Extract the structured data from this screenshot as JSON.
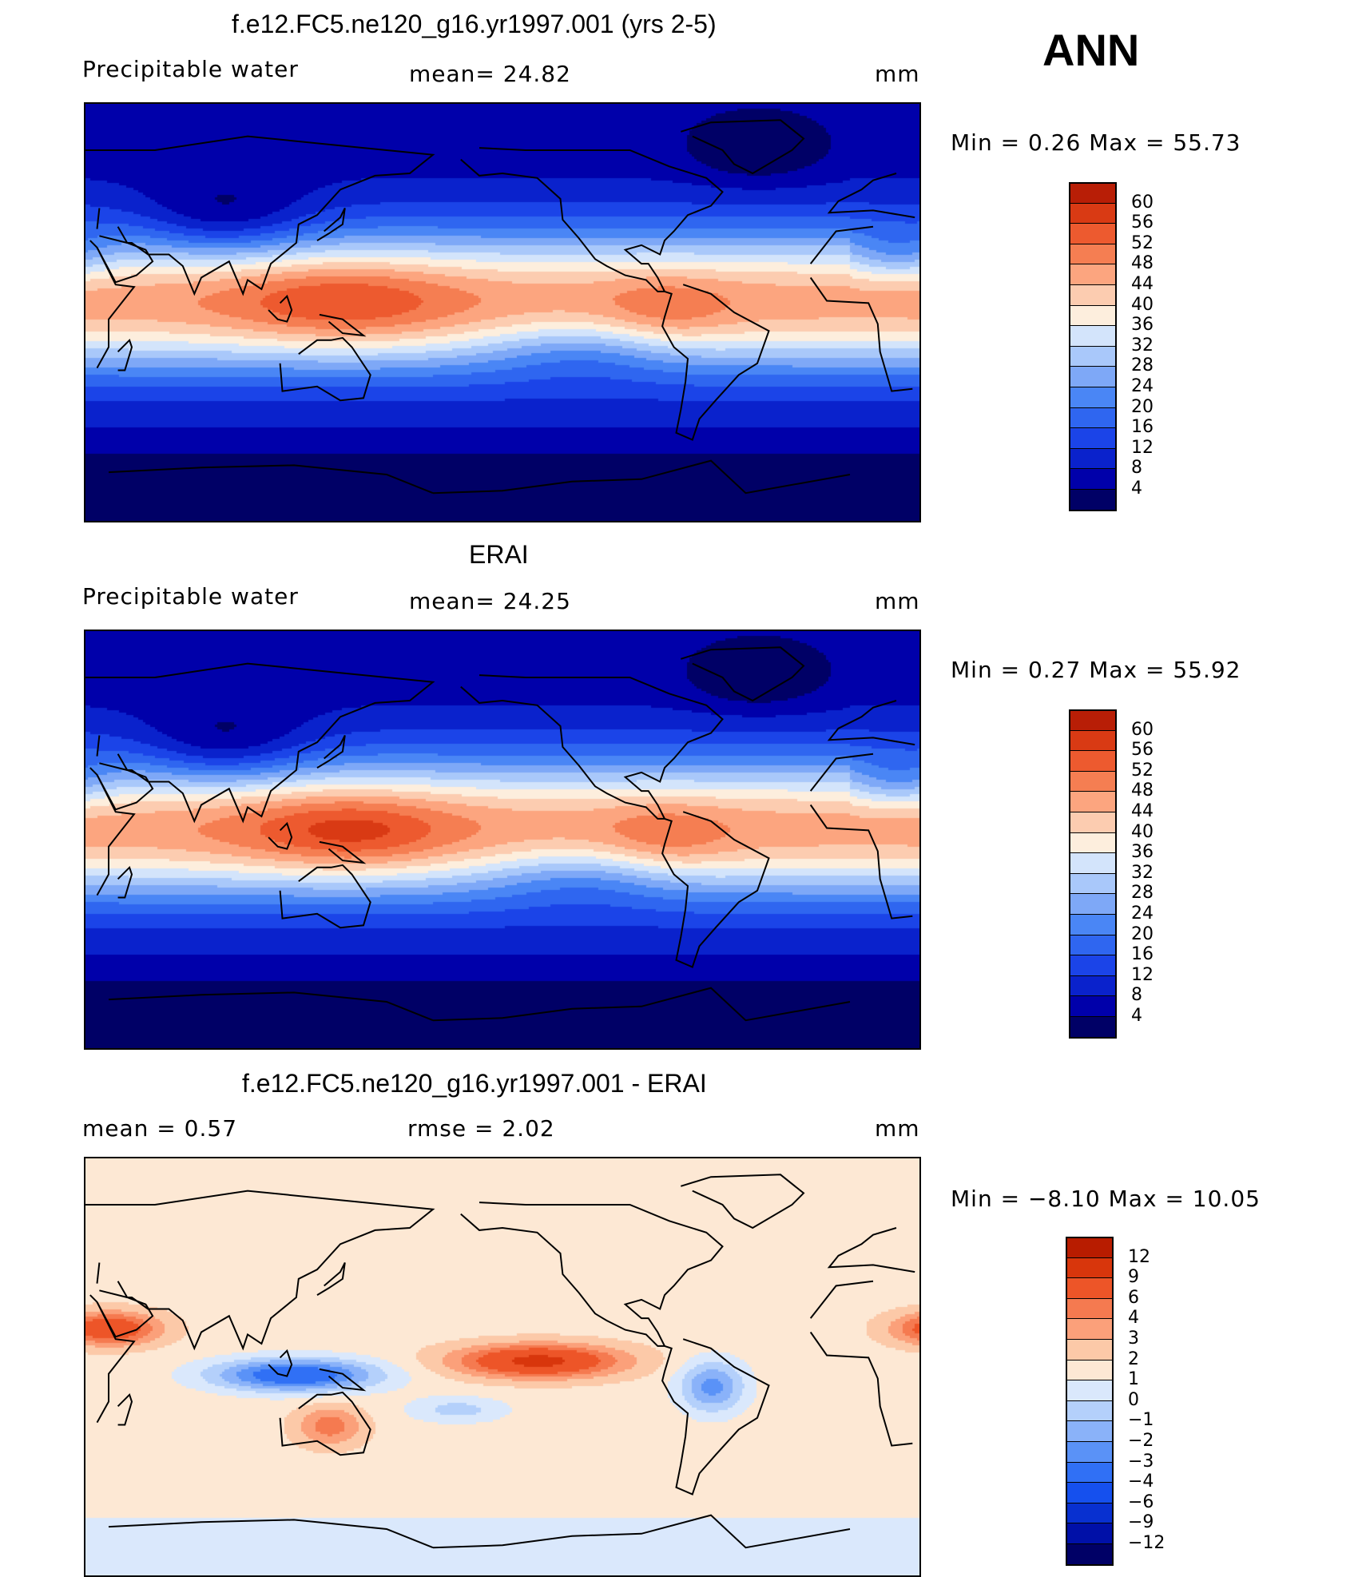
{
  "season": "ANN",
  "colors": {
    "abs_scale": [
      "#000066",
      "#0000aa",
      "#0a22cc",
      "#1b44e8",
      "#2f66f0",
      "#4a86f5",
      "#7ea8f7",
      "#a9c8fa",
      "#d3e4fb",
      "#fdeedd",
      "#fcccb0",
      "#fca57f",
      "#f57e52",
      "#ed5a2f",
      "#d93a14",
      "#b81e06",
      "#8c0000"
    ],
    "diff_scale": [
      "#000066",
      "#0010a8",
      "#0830d0",
      "#1550ee",
      "#3070f5",
      "#5a92f7",
      "#8ab2f9",
      "#b4d0fb",
      "#dae8fc",
      "#fde8d4",
      "#fcc9a8",
      "#fba07a",
      "#f57a50",
      "#ed5528",
      "#d8360c",
      "#b81c00",
      "#8c0000"
    ]
  },
  "panels": [
    {
      "title": "f.e12.FC5.ne120_g16.yr1997.001 (yrs 2-5)",
      "left_label": "Precipitable  water",
      "mid_label": "mean=   24.82",
      "right_label": "mm",
      "stats": "Min  =     0.26  Max  =     55.73",
      "levels": [
        "60",
        "56",
        "52",
        "48",
        "44",
        "40",
        "36",
        "32",
        "28",
        "24",
        "20",
        "16",
        "12",
        "8",
        "4"
      ],
      "kind": "model"
    },
    {
      "title": "ERAI",
      "left_label": "Precipitable  water",
      "mid_label": "mean=   24.25",
      "right_label": "mm",
      "stats": "Min  =     0.27  Max  =     55.92",
      "levels": [
        "60",
        "56",
        "52",
        "48",
        "44",
        "40",
        "36",
        "32",
        "28",
        "24",
        "20",
        "16",
        "12",
        "8",
        "4"
      ],
      "kind": "obs"
    },
    {
      "title": "f.e12.FC5.ne120_g16.yr1997.001 - ERAI",
      "left_label": "mean  =      0.57",
      "mid_label": "rmse  =      2.02",
      "right_label": "mm",
      "stats": "Min  =   −8.10  Max  =     10.05",
      "levels": [
        "12",
        "9",
        "6",
        "4",
        "3",
        "2",
        "1",
        "0",
        "−1",
        "−2",
        "−3",
        "−4",
        "−6",
        "−9",
        "−12"
      ],
      "kind": "diff"
    }
  ]
}
